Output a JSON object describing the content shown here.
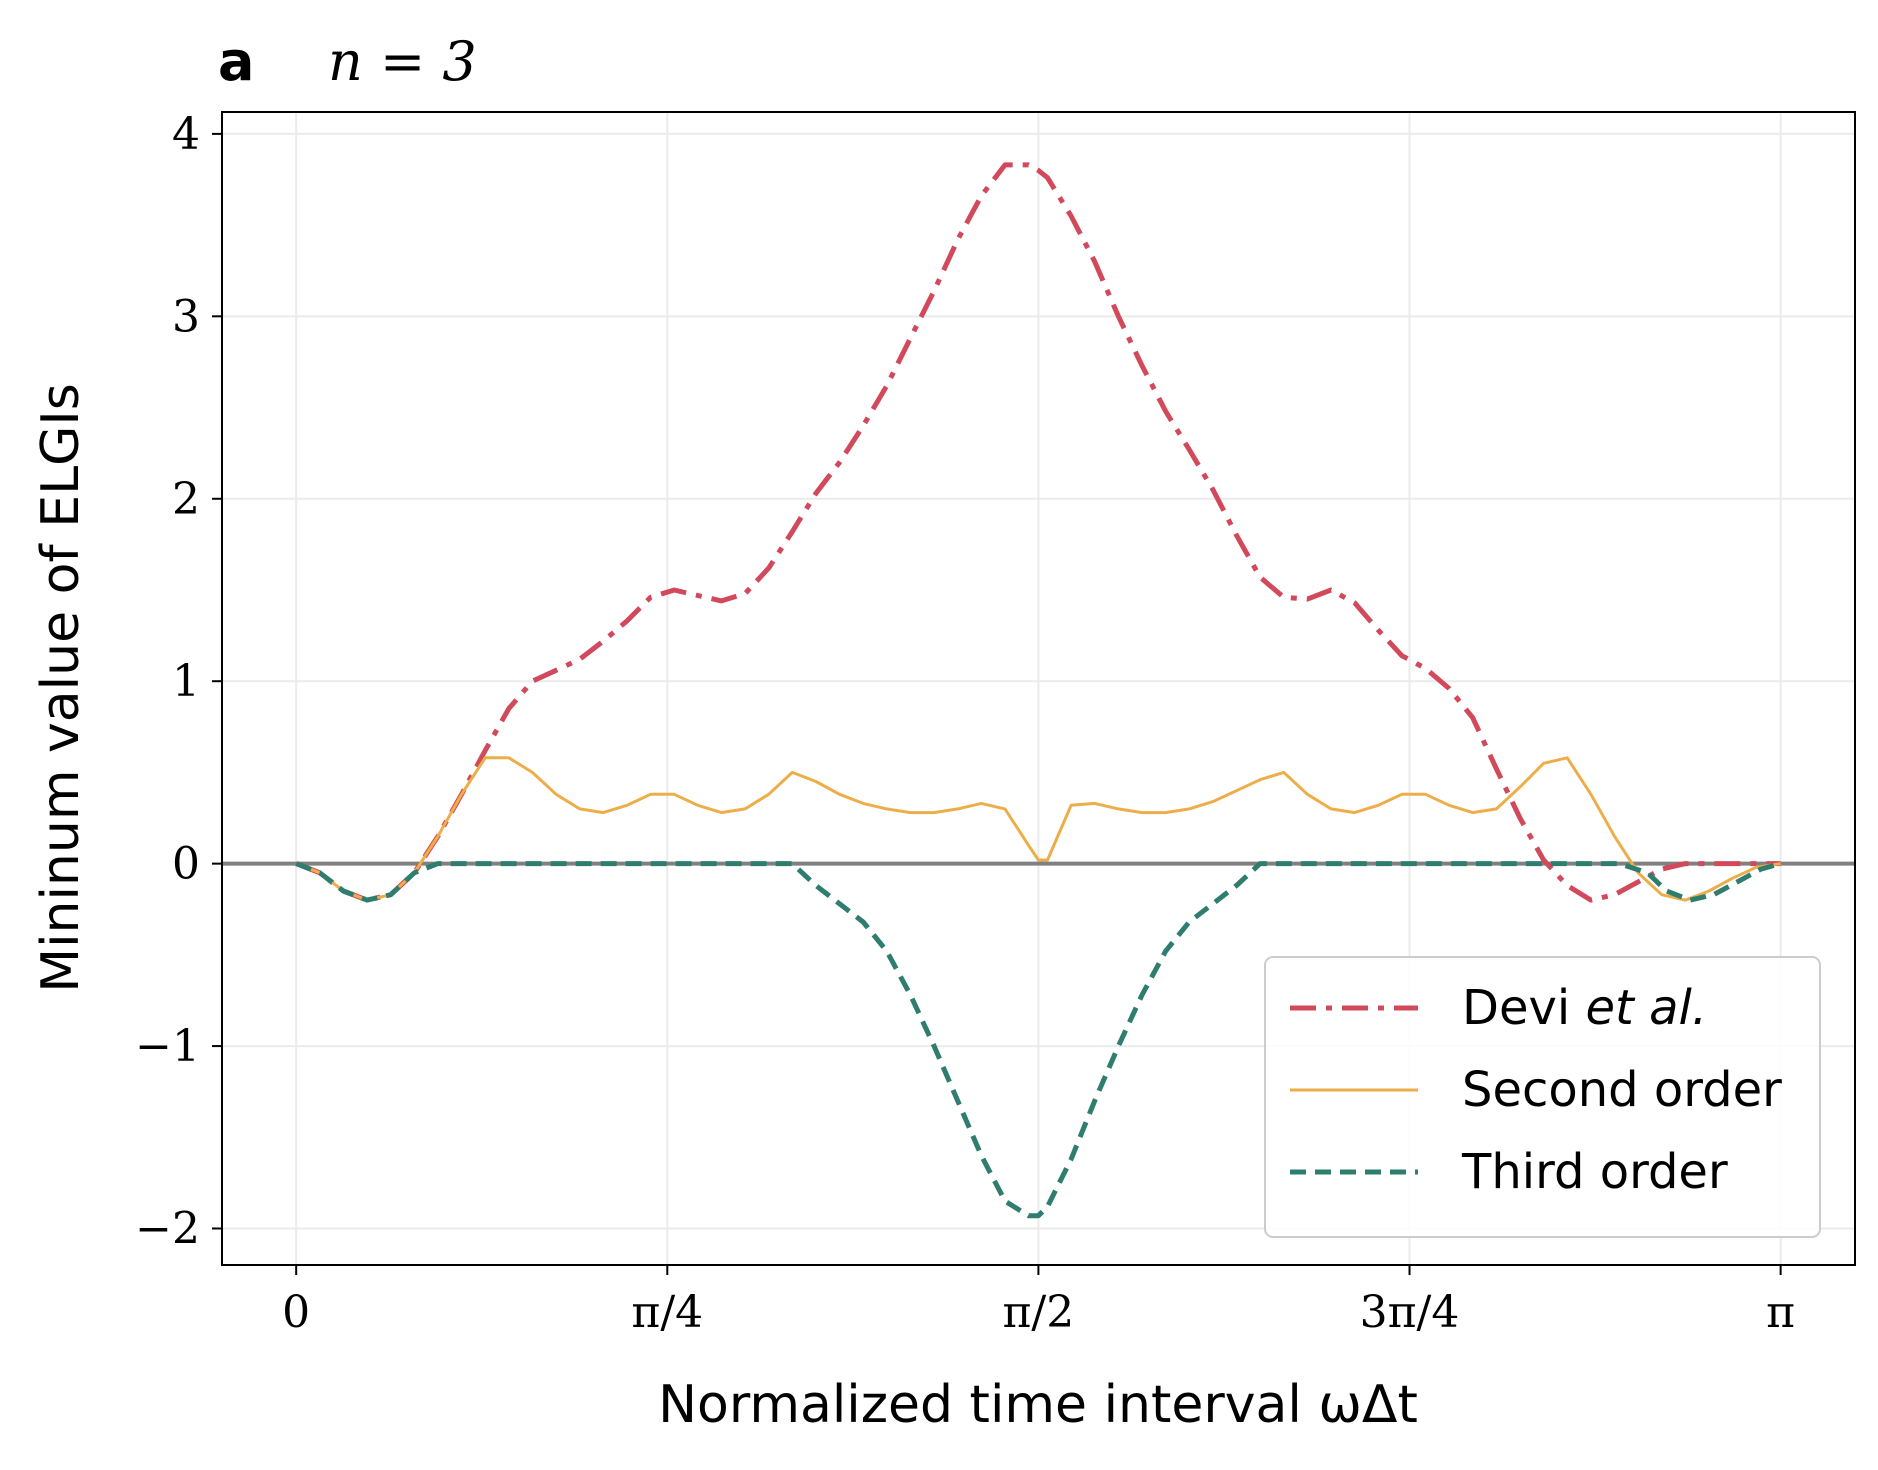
{
  "panel": {
    "letter": "a",
    "subtitle": "n = 3"
  },
  "chart_data": {
    "type": "line",
    "title": "a   n = 3",
    "xlabel": "Normalized time interval ωΔt",
    "ylabel": "Mininum value of ELGIs",
    "xlim": [
      -0.157,
      3.299
    ],
    "ylim": [
      -2.2,
      4.12
    ],
    "grid": true,
    "legend_position": "lower-right",
    "x_ticks": [
      {
        "value": 0,
        "label": "0"
      },
      {
        "value": 0.7854,
        "label": "π/4"
      },
      {
        "value": 1.5708,
        "label": "π/2"
      },
      {
        "value": 2.3562,
        "label": "3π/4"
      },
      {
        "value": 3.1416,
        "label": "π"
      }
    ],
    "y_ticks": [
      {
        "value": -2,
        "label": "−2"
      },
      {
        "value": -1,
        "label": "−1"
      },
      {
        "value": 0,
        "label": "0"
      },
      {
        "value": 1,
        "label": "1"
      },
      {
        "value": 2,
        "label": "2"
      },
      {
        "value": 3,
        "label": "3"
      },
      {
        "value": 4,
        "label": "4"
      }
    ],
    "reference_line": {
      "y": 0,
      "color": "#808080"
    },
    "series": [
      {
        "name": "Devi et al.",
        "legend_main": "Devi ",
        "legend_italic": "et al.",
        "color": "#d1495b",
        "style": "dashdot",
        "x": [
          0,
          0.05,
          0.1,
          0.15,
          0.2,
          0.25,
          0.3,
          0.35,
          0.4,
          0.45,
          0.5,
          0.55,
          0.6,
          0.65,
          0.7,
          0.75,
          0.8,
          0.85,
          0.9,
          0.95,
          1.0,
          1.05,
          1.1,
          1.15,
          1.2,
          1.25,
          1.3,
          1.35,
          1.4,
          1.45,
          1.5,
          1.55,
          1.5708,
          1.59,
          1.64,
          1.69,
          1.74,
          1.79,
          1.84,
          1.89,
          1.94,
          1.99,
          2.04,
          2.09,
          2.14,
          2.19,
          2.24,
          2.29,
          2.34,
          2.39,
          2.44,
          2.49,
          2.54,
          2.59,
          2.64,
          2.69,
          2.74,
          2.79,
          2.84,
          2.89,
          2.94,
          2.99,
          3.04,
          3.09,
          3.1416
        ],
        "y": [
          0,
          -0.05,
          -0.15,
          -0.2,
          -0.17,
          -0.05,
          0.15,
          0.38,
          0.62,
          0.85,
          1.0,
          1.06,
          1.12,
          1.22,
          1.33,
          1.46,
          1.5,
          1.47,
          1.44,
          1.48,
          1.62,
          1.82,
          2.03,
          2.2,
          2.4,
          2.62,
          2.88,
          3.14,
          3.42,
          3.66,
          3.83,
          3.83,
          3.8,
          3.76,
          3.55,
          3.3,
          3.0,
          2.73,
          2.48,
          2.27,
          2.05,
          1.8,
          1.57,
          1.46,
          1.45,
          1.5,
          1.43,
          1.28,
          1.14,
          1.07,
          0.96,
          0.8,
          0.52,
          0.25,
          0.02,
          -0.12,
          -0.2,
          -0.17,
          -0.1,
          -0.03,
          0,
          0,
          0,
          0,
          0
        ]
      },
      {
        "name": "Second order",
        "color": "#edae49",
        "style": "solid",
        "x": [
          0,
          0.05,
          0.1,
          0.15,
          0.2,
          0.25,
          0.3,
          0.35,
          0.4,
          0.45,
          0.5,
          0.55,
          0.6,
          0.65,
          0.7,
          0.75,
          0.8,
          0.85,
          0.9,
          0.95,
          1.0,
          1.05,
          1.1,
          1.15,
          1.2,
          1.25,
          1.3,
          1.35,
          1.4,
          1.45,
          1.5,
          1.55,
          1.5708,
          1.59,
          1.64,
          1.69,
          1.74,
          1.79,
          1.84,
          1.89,
          1.94,
          1.99,
          2.04,
          2.09,
          2.14,
          2.19,
          2.24,
          2.29,
          2.34,
          2.39,
          2.44,
          2.49,
          2.54,
          2.59,
          2.64,
          2.69,
          2.74,
          2.79,
          2.84,
          2.89,
          2.94,
          2.99,
          3.04,
          3.09,
          3.1416
        ],
        "y": [
          0,
          -0.05,
          -0.15,
          -0.2,
          -0.17,
          -0.05,
          0.15,
          0.38,
          0.58,
          0.58,
          0.5,
          0.38,
          0.3,
          0.28,
          0.32,
          0.38,
          0.38,
          0.32,
          0.28,
          0.3,
          0.38,
          0.5,
          0.45,
          0.38,
          0.33,
          0.3,
          0.28,
          0.28,
          0.3,
          0.33,
          0.3,
          0.1,
          0.02,
          0.02,
          0.32,
          0.33,
          0.3,
          0.28,
          0.28,
          0.3,
          0.34,
          0.4,
          0.46,
          0.5,
          0.38,
          0.3,
          0.28,
          0.32,
          0.38,
          0.38,
          0.32,
          0.28,
          0.3,
          0.42,
          0.55,
          0.58,
          0.38,
          0.15,
          -0.05,
          -0.17,
          -0.2,
          -0.15,
          -0.08,
          -0.02,
          0
        ]
      },
      {
        "name": "Third order",
        "color": "#2e7d6e",
        "style": "dashed",
        "x": [
          0,
          0.05,
          0.1,
          0.15,
          0.2,
          0.25,
          0.3,
          0.32,
          0.4,
          0.6,
          0.8,
          1.0,
          1.05,
          1.1,
          1.15,
          1.2,
          1.25,
          1.3,
          1.35,
          1.4,
          1.45,
          1.5,
          1.55,
          1.5708,
          1.59,
          1.64,
          1.69,
          1.74,
          1.79,
          1.84,
          1.89,
          1.94,
          1.99,
          2.04,
          2.09,
          2.14,
          2.4,
          2.6,
          2.8,
          2.86,
          2.9,
          2.95,
          3.0,
          3.05,
          3.1,
          3.1416
        ],
        "y": [
          0,
          -0.05,
          -0.15,
          -0.2,
          -0.17,
          -0.05,
          0.0,
          0.0,
          0.0,
          0.0,
          0.0,
          0.0,
          0.0,
          -0.12,
          -0.22,
          -0.32,
          -0.48,
          -0.72,
          -1.0,
          -1.3,
          -1.6,
          -1.85,
          -1.93,
          -1.93,
          -1.88,
          -1.62,
          -1.3,
          -1.0,
          -0.72,
          -0.48,
          -0.32,
          -0.22,
          -0.12,
          0.0,
          0.0,
          0.0,
          0.0,
          0.0,
          0.0,
          -0.05,
          -0.15,
          -0.2,
          -0.17,
          -0.1,
          -0.03,
          0
        ]
      }
    ]
  }
}
